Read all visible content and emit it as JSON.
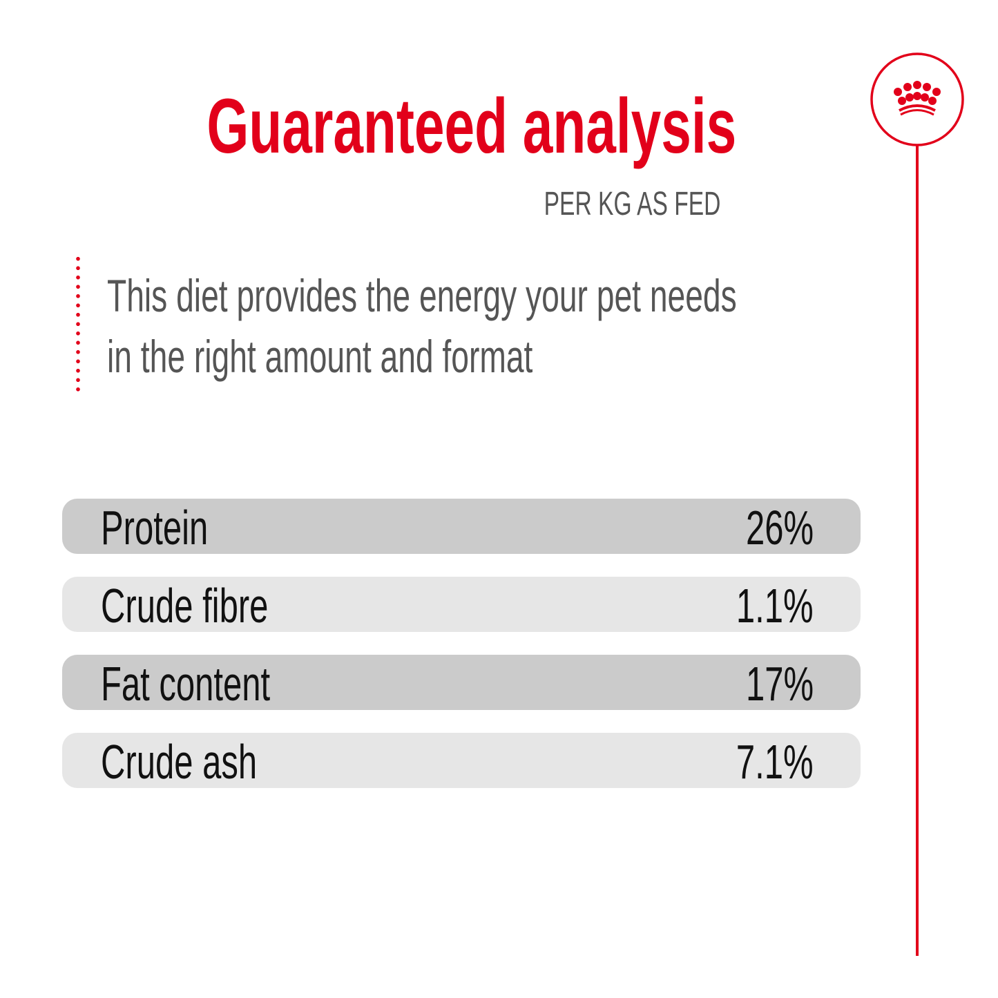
{
  "header": {
    "title": "Guaranteed analysis",
    "subtitle": "PER KG AS FED"
  },
  "description": {
    "lines": [
      "This diet provides the energy your pet needs",
      "in the right amount and format"
    ]
  },
  "analysis": [
    {
      "label": "Protein",
      "value": "26%"
    },
    {
      "label": "Crude fibre",
      "value": "1.1%"
    },
    {
      "label": "Fat content",
      "value": "17%"
    },
    {
      "label": "Crude ash",
      "value": "7.1%"
    }
  ],
  "logo": {
    "icon": "crown-icon"
  },
  "colors": {
    "accent": "#e2001a",
    "row_dark": "#cbcbcb",
    "row_light": "#e6e6e6",
    "text_gray": "#555555"
  }
}
